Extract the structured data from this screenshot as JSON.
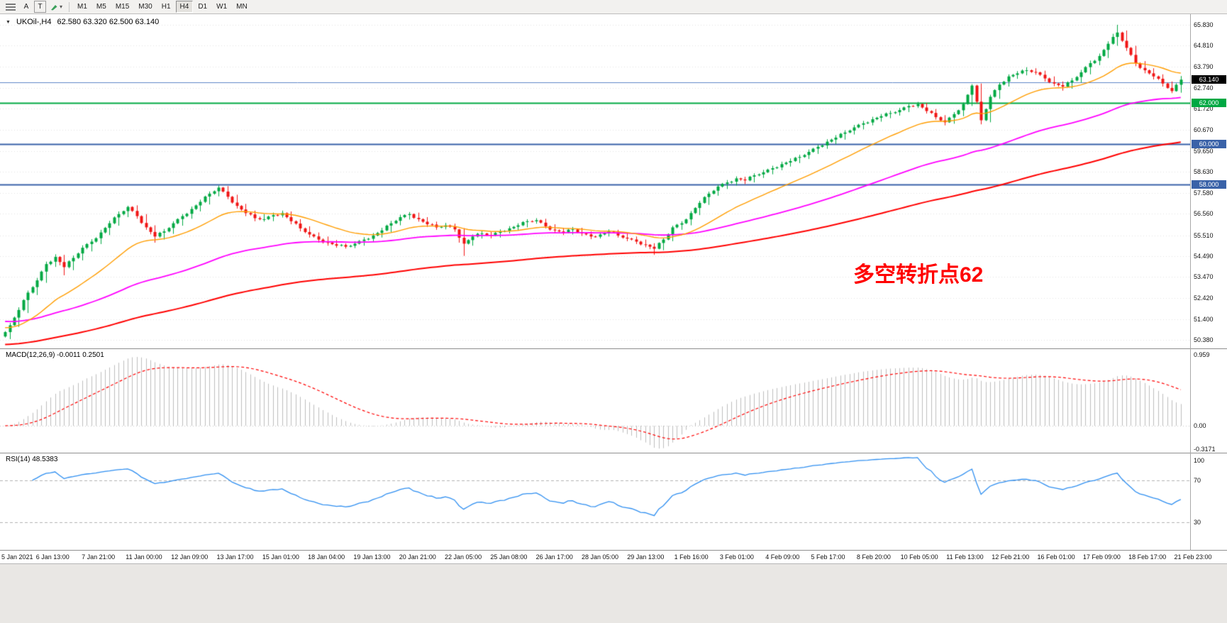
{
  "toolbar": {
    "buttons": [
      "A",
      "T"
    ],
    "dropdown_caret": "▾",
    "timeframes": [
      "M1",
      "M5",
      "M15",
      "M30",
      "H1",
      "H4",
      "D1",
      "W1",
      "MN"
    ],
    "active_timeframe": "H4"
  },
  "icons": {
    "collapse": "▼"
  },
  "chart": {
    "symbol_tf": "UKOil-,H4",
    "ohlc_readout": "62.580 63.320 62.500 63.140",
    "annotation": {
      "text": "多空转折点62",
      "color": "#FF0000"
    },
    "price_axis_labels": [
      "65.830",
      "64.810",
      "63.790",
      "62.740",
      "61.720",
      "60.670",
      "59.650",
      "58.630",
      "57.580",
      "56.560",
      "55.510",
      "54.490",
      "53.470",
      "52.420",
      "51.400",
      "50.380"
    ],
    "badges": [
      {
        "text": "63.140",
        "value": 63.14,
        "bg": "#000000"
      },
      {
        "text": "62.000",
        "value": 62.0,
        "bg": "#00A843"
      },
      {
        "text": "60.000",
        "value": 60.0,
        "bg": "#3A62A8"
      },
      {
        "text": "58.000",
        "value": 58.0,
        "bg": "#3A62A8"
      }
    ],
    "hlines": [
      {
        "value": 63.0,
        "color": "#5C85C7",
        "width": 1
      },
      {
        "value": 62.0,
        "color": "#00A843",
        "width": 2
      },
      {
        "value": 60.0,
        "color": "#3A62A8",
        "width": 2
      },
      {
        "value": 58.0,
        "color": "#3A62A8",
        "width": 2
      }
    ]
  },
  "macd_panel": {
    "label": "MACD(12,26,9) -0.0011 0.2501",
    "axis_labels": [
      {
        "text": "0.959",
        "value": 0.959
      },
      {
        "text": "0.00",
        "value": 0
      },
      {
        "text": "-0.3171",
        "value": -0.3171
      }
    ]
  },
  "rsi_panel": {
    "label": "RSI(14) 48.5383",
    "axis_labels": [
      {
        "text": "100",
        "value": 100
      },
      {
        "text": "70",
        "value": 70
      },
      {
        "text": "30",
        "value": 30
      }
    ]
  },
  "time_axis": {
    "labels": [
      "5 Jan 2021",
      "6 Jan 13:00",
      "7 Jan 21:00",
      "11 Jan 00:00",
      "12 Jan 09:00",
      "13 Jan 17:00",
      "15 Jan 01:00",
      "18 Jan 04:00",
      "19 Jan 13:00",
      "20 Jan 21:00",
      "22 Jan 05:00",
      "25 Jan 08:00",
      "26 Jan 17:00",
      "28 Jan 05:00",
      "29 Jan 13:00",
      "1 Feb 16:00",
      "3 Feb 01:00",
      "4 Feb 09:00",
      "5 Feb 17:00",
      "8 Feb 20:00",
      "10 Feb 05:00",
      "11 Feb 13:00",
      "12 Feb 21:00",
      "16 Feb 01:00",
      "17 Feb 09:00",
      "18 Feb 17:00",
      "21 Feb 23:00"
    ]
  },
  "colors": {
    "bull": "#00A843",
    "bear": "#F01414",
    "macd_hist": "#BDBDBD",
    "macd_signal": "#FF0000",
    "rsi_line": "#2E8EF0",
    "rsi_level": "#B0B0B0",
    "grid": "#E3E3E3"
  },
  "chart_data": {
    "type": "candlestick",
    "symbol": "UKOil-",
    "timeframe": "H4",
    "last_bar": {
      "open": 62.58,
      "high": 63.32,
      "low": 62.5,
      "close": 63.14
    },
    "ylim": [
      50.07,
      66.28
    ],
    "upsample": 2,
    "candles": [
      [
        50.55,
        51.22,
        50.42,
        51.1
      ],
      [
        51.1,
        51.98,
        51.02,
        51.85
      ],
      [
        51.85,
        52.8,
        51.7,
        52.7
      ],
      [
        52.7,
        53.42,
        52.58,
        53.3
      ],
      [
        53.3,
        54.22,
        53.18,
        54.1
      ],
      [
        54.1,
        54.58,
        53.96,
        54.45
      ],
      [
        54.45,
        54.55,
        53.55,
        53.95
      ],
      [
        53.95,
        54.52,
        53.8,
        54.4
      ],
      [
        54.4,
        55.02,
        54.28,
        54.9
      ],
      [
        54.9,
        55.32,
        54.72,
        55.2
      ],
      [
        55.2,
        55.78,
        55.08,
        55.65
      ],
      [
        55.65,
        56.22,
        55.52,
        56.1
      ],
      [
        56.1,
        56.68,
        55.98,
        56.55
      ],
      [
        56.55,
        56.96,
        56.4,
        56.9
      ],
      [
        56.9,
        56.98,
        56.32,
        56.45
      ],
      [
        56.45,
        56.55,
        55.78,
        55.9
      ],
      [
        55.9,
        56.0,
        55.15,
        55.45
      ],
      [
        55.45,
        55.82,
        55.3,
        55.7
      ],
      [
        55.7,
        56.2,
        55.58,
        56.1
      ],
      [
        56.1,
        56.55,
        55.98,
        56.45
      ],
      [
        56.45,
        56.92,
        56.32,
        56.8
      ],
      [
        56.8,
        57.26,
        56.68,
        57.15
      ],
      [
        57.15,
        57.66,
        57.02,
        57.55
      ],
      [
        57.55,
        57.95,
        57.42,
        57.85
      ],
      [
        57.85,
        57.92,
        57.28,
        57.4
      ],
      [
        57.4,
        57.5,
        56.82,
        56.95
      ],
      [
        56.95,
        57.05,
        56.45,
        56.6
      ],
      [
        56.6,
        56.72,
        56.2,
        56.35
      ],
      [
        56.35,
        56.55,
        56.18,
        56.3
      ],
      [
        56.3,
        56.62,
        56.2,
        56.5
      ],
      [
        56.5,
        56.72,
        56.38,
        56.6
      ],
      [
        56.6,
        56.68,
        56.05,
        56.2
      ],
      [
        56.2,
        56.3,
        55.7,
        55.85
      ],
      [
        55.85,
        55.95,
        55.4,
        55.55
      ],
      [
        55.55,
        55.65,
        55.15,
        55.3
      ],
      [
        55.3,
        55.45,
        55.0,
        55.15
      ],
      [
        55.15,
        55.28,
        54.9,
        55.0
      ],
      [
        55.0,
        55.12,
        54.86,
        54.95
      ],
      [
        54.95,
        55.22,
        54.88,
        55.1
      ],
      [
        55.1,
        55.42,
        55.0,
        55.3
      ],
      [
        55.3,
        55.62,
        55.2,
        55.5
      ],
      [
        55.5,
        55.88,
        55.4,
        55.75
      ],
      [
        55.75,
        56.22,
        55.65,
        56.1
      ],
      [
        56.1,
        56.52,
        56.0,
        56.4
      ],
      [
        56.4,
        56.65,
        56.28,
        56.55
      ],
      [
        56.55,
        56.62,
        56.18,
        56.3
      ],
      [
        56.3,
        56.4,
        55.92,
        56.05
      ],
      [
        56.05,
        56.18,
        55.78,
        55.9
      ],
      [
        55.9,
        56.12,
        55.8,
        56.0
      ],
      [
        56.0,
        56.08,
        55.68,
        55.8
      ],
      [
        55.8,
        55.86,
        54.5,
        55.1
      ],
      [
        55.1,
        55.55,
        55.0,
        55.45
      ],
      [
        55.45,
        55.72,
        55.35,
        55.6
      ],
      [
        55.6,
        55.68,
        55.36,
        55.5
      ],
      [
        55.5,
        55.8,
        55.4,
        55.7
      ],
      [
        55.7,
        55.96,
        55.6,
        55.85
      ],
      [
        55.85,
        56.1,
        55.75,
        56.0
      ],
      [
        56.0,
        56.3,
        55.9,
        56.2
      ],
      [
        56.2,
        56.35,
        56.08,
        56.25
      ],
      [
        56.25,
        56.32,
        55.85,
        55.95
      ],
      [
        55.95,
        56.05,
        55.62,
        55.75
      ],
      [
        55.75,
        55.88,
        55.52,
        55.65
      ],
      [
        55.65,
        55.92,
        55.55,
        55.8
      ],
      [
        55.8,
        55.88,
        55.48,
        55.6
      ],
      [
        55.6,
        55.7,
        55.32,
        55.45
      ],
      [
        55.45,
        55.66,
        55.35,
        55.55
      ],
      [
        55.55,
        55.8,
        55.45,
        55.7
      ],
      [
        55.7,
        55.78,
        55.4,
        55.5
      ],
      [
        55.5,
        55.6,
        55.22,
        55.35
      ],
      [
        55.35,
        55.45,
        55.08,
        55.2
      ],
      [
        55.2,
        55.3,
        54.92,
        55.05
      ],
      [
        55.05,
        55.12,
        54.55,
        54.85
      ],
      [
        54.85,
        55.38,
        54.78,
        55.3
      ],
      [
        55.3,
        55.98,
        55.22,
        55.9
      ],
      [
        55.9,
        56.2,
        55.78,
        56.1
      ],
      [
        56.1,
        56.7,
        56.0,
        56.6
      ],
      [
        56.6,
        57.2,
        56.5,
        57.1
      ],
      [
        57.1,
        57.65,
        57.0,
        57.55
      ],
      [
        57.55,
        58.0,
        57.45,
        57.9
      ],
      [
        57.9,
        58.22,
        57.78,
        58.1
      ],
      [
        58.1,
        58.4,
        57.95,
        58.3
      ],
      [
        58.3,
        58.38,
        58.02,
        58.2
      ],
      [
        58.2,
        58.55,
        58.1,
        58.45
      ],
      [
        58.45,
        58.72,
        58.32,
        58.6
      ],
      [
        58.6,
        58.92,
        58.5,
        58.8
      ],
      [
        58.8,
        59.12,
        58.7,
        59.0
      ],
      [
        59.0,
        59.28,
        58.88,
        59.15
      ],
      [
        59.15,
        59.46,
        59.05,
        59.35
      ],
      [
        59.35,
        59.72,
        59.25,
        59.6
      ],
      [
        59.6,
        59.96,
        59.5,
        59.85
      ],
      [
        59.85,
        60.22,
        59.75,
        60.1
      ],
      [
        60.1,
        60.42,
        59.98,
        60.3
      ],
      [
        60.3,
        60.66,
        60.2,
        60.55
      ],
      [
        60.55,
        60.92,
        60.45,
        60.8
      ],
      [
        60.8,
        61.12,
        60.7,
        61.0
      ],
      [
        61.0,
        61.32,
        60.9,
        61.2
      ],
      [
        61.2,
        61.46,
        61.08,
        61.35
      ],
      [
        61.35,
        61.62,
        61.25,
        61.5
      ],
      [
        61.5,
        61.76,
        61.38,
        61.65
      ],
      [
        61.65,
        61.95,
        61.55,
        61.85
      ],
      [
        61.85,
        62.05,
        61.75,
        61.95
      ],
      [
        61.95,
        62.0,
        61.48,
        61.6
      ],
      [
        61.6,
        61.7,
        61.18,
        61.3
      ],
      [
        61.3,
        61.4,
        60.9,
        61.05
      ],
      [
        61.05,
        61.55,
        60.98,
        61.45
      ],
      [
        61.45,
        62.02,
        61.35,
        61.95
      ],
      [
        61.95,
        62.92,
        61.85,
        62.85
      ],
      [
        62.85,
        62.95,
        60.95,
        61.15
      ],
      [
        61.15,
        62.4,
        61.05,
        62.3
      ],
      [
        62.3,
        63.0,
        62.2,
        62.9
      ],
      [
        62.9,
        63.4,
        62.8,
        63.3
      ],
      [
        63.3,
        63.56,
        63.18,
        63.45
      ],
      [
        63.45,
        63.75,
        63.35,
        63.6
      ],
      [
        63.6,
        63.7,
        63.38,
        63.5
      ],
      [
        63.5,
        63.58,
        63.05,
        63.2
      ],
      [
        63.2,
        63.3,
        62.82,
        62.95
      ],
      [
        62.95,
        63.05,
        62.6,
        62.8
      ],
      [
        62.8,
        63.22,
        62.7,
        63.1
      ],
      [
        63.1,
        63.62,
        63.0,
        63.5
      ],
      [
        63.5,
        64.08,
        63.4,
        63.95
      ],
      [
        63.95,
        64.42,
        63.85,
        64.3
      ],
      [
        64.3,
        65.02,
        64.2,
        64.9
      ],
      [
        64.9,
        65.83,
        64.8,
        65.45
      ],
      [
        65.45,
        65.55,
        64.55,
        64.7
      ],
      [
        64.7,
        64.8,
        63.8,
        63.95
      ],
      [
        63.95,
        64.05,
        63.45,
        63.6
      ],
      [
        63.6,
        63.7,
        63.15,
        63.3
      ],
      [
        63.3,
        63.4,
        62.8,
        62.95
      ],
      [
        62.95,
        63.05,
        62.48,
        62.58
      ],
      [
        62.58,
        63.32,
        62.5,
        63.14
      ]
    ],
    "moving_averages": [
      {
        "name": "ma-fast",
        "period": 12,
        "seed": 51.0,
        "color": "#FF9D00",
        "width": 1.4
      },
      {
        "name": "ma-mid",
        "period": 40,
        "seed": 51.3,
        "color": "#FF00FF",
        "width": 1.8
      },
      {
        "name": "ma-slow",
        "period": 85,
        "seed": 50.15,
        "color": "#FF0000",
        "width": 2
      }
    ],
    "indicators": {
      "macd": {
        "fast": 12,
        "slow": 26,
        "signal": 9,
        "current_main": -0.0011,
        "current_signal": 0.2501,
        "scale_max": 0.959,
        "scale_min": -0.3171
      },
      "rsi": {
        "period": 14,
        "current": 48.5383,
        "levels": [
          70,
          30
        ]
      }
    }
  }
}
